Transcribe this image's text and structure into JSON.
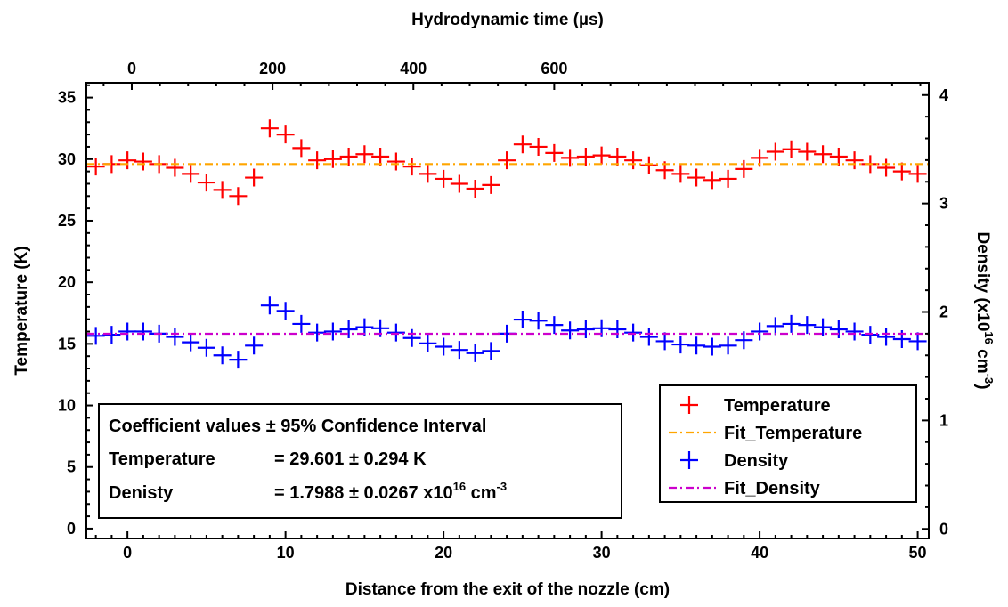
{
  "chart_data": {
    "type": "scatter",
    "xlabel": "Distance from the exit of the nozzle (cm)",
    "x2label": "Hydrodynamic time (µs)",
    "ylabel": "Temperature (K)",
    "y2label": {
      "prefix": "Density (x10",
      "sup1": "16",
      "mid": " cm",
      "sup2": "-3",
      "suffix": ")"
    },
    "xlim": [
      -2.6,
      50.7
    ],
    "ylim": [
      -0.8,
      36.2
    ],
    "x2lim": [
      -64.5,
      1132
    ],
    "y2lim": [
      -0.0882,
      4.113
    ],
    "x_ticks": [
      0,
      10,
      20,
      30,
      40,
      50
    ],
    "x2_ticks": [
      0,
      200,
      400,
      600
    ],
    "y_ticks": [
      0,
      5,
      10,
      15,
      20,
      25,
      30,
      35
    ],
    "y2_ticks": [
      0,
      1,
      2,
      3,
      4
    ],
    "x_minor_step": 1,
    "y_minor_step": 1,
    "x2_minor_step": 40,
    "y2_minor_step": 0.2,
    "series": [
      {
        "name": "Temperature",
        "axis": "left",
        "color": "#ff0000",
        "marker": "plus",
        "x": [
          -2,
          -1,
          0,
          1,
          2,
          3,
          4,
          5,
          6,
          7,
          8,
          9,
          10,
          11,
          12,
          13,
          14,
          15,
          16,
          17,
          18,
          19,
          20,
          21,
          22,
          23,
          24,
          25,
          26,
          27,
          28,
          29,
          30,
          31,
          32,
          33,
          34,
          35,
          36,
          37,
          38,
          39,
          40,
          41,
          42,
          43,
          44,
          45,
          46,
          47,
          48,
          49,
          50
        ],
        "y": [
          29.4,
          29.6,
          29.9,
          29.8,
          29.6,
          29.3,
          28.8,
          28.1,
          27.5,
          27.0,
          28.5,
          32.5,
          32.0,
          30.9,
          29.9,
          30.0,
          30.2,
          30.4,
          30.2,
          29.8,
          29.4,
          28.8,
          28.4,
          28.0,
          27.6,
          27.9,
          29.9,
          31.2,
          31.0,
          30.5,
          30.1,
          30.2,
          30.3,
          30.2,
          29.9,
          29.5,
          29.1,
          28.8,
          28.5,
          28.3,
          28.4,
          29.2,
          30.1,
          30.6,
          30.8,
          30.6,
          30.4,
          30.2,
          29.9,
          29.6,
          29.3,
          29.0,
          28.8
        ]
      },
      {
        "name": "Fit_Temperature",
        "axis": "left",
        "color": "#ffa500",
        "style": "dash-dot",
        "x": [
          -2.6,
          50.7
        ],
        "y": [
          29.601,
          29.601
        ]
      },
      {
        "name": "Density",
        "axis": "right",
        "color": "#0000ff",
        "marker": "plus",
        "x": [
          -2,
          -1,
          0,
          1,
          2,
          3,
          4,
          5,
          6,
          7,
          8,
          9,
          10,
          11,
          12,
          13,
          14,
          15,
          16,
          17,
          18,
          19,
          20,
          21,
          22,
          23,
          24,
          25,
          26,
          27,
          28,
          29,
          30,
          31,
          32,
          33,
          34,
          35,
          36,
          37,
          38,
          39,
          40,
          41,
          42,
          43,
          44,
          45,
          46,
          47,
          48,
          49,
          50
        ],
        "y": [
          1.78,
          1.79,
          1.82,
          1.82,
          1.8,
          1.77,
          1.72,
          1.67,
          1.6,
          1.56,
          1.69,
          2.06,
          2.01,
          1.89,
          1.81,
          1.82,
          1.84,
          1.86,
          1.85,
          1.81,
          1.76,
          1.71,
          1.68,
          1.65,
          1.62,
          1.64,
          1.8,
          1.93,
          1.92,
          1.88,
          1.83,
          1.84,
          1.85,
          1.84,
          1.81,
          1.77,
          1.73,
          1.7,
          1.69,
          1.68,
          1.69,
          1.74,
          1.82,
          1.87,
          1.89,
          1.88,
          1.86,
          1.84,
          1.82,
          1.79,
          1.77,
          1.75,
          1.73
        ]
      },
      {
        "name": "Fit_Density",
        "axis": "right",
        "color": "#cc00cc",
        "style": "dash-dot",
        "x": [
          -2.6,
          50.7
        ],
        "y": [
          1.7988,
          1.7988
        ]
      }
    ],
    "legend": {
      "position": "bottom-right",
      "entries": [
        "Temperature",
        "Fit_Temperature",
        "Density",
        "Fit_Density"
      ]
    },
    "annotation": {
      "position": "bottom-left",
      "title": "Coefficient values ± 95% Confidence Interval",
      "row1_label": "Temperature",
      "row1_value": "= 29.601 ± 0.294 K",
      "row2_label": "Denisty",
      "row2_value_prefix": "= 1.7988 ± 0.0267 x10",
      "row2_sup1": "16",
      "row2_mid": " cm",
      "row2_sup2": "-3"
    }
  }
}
